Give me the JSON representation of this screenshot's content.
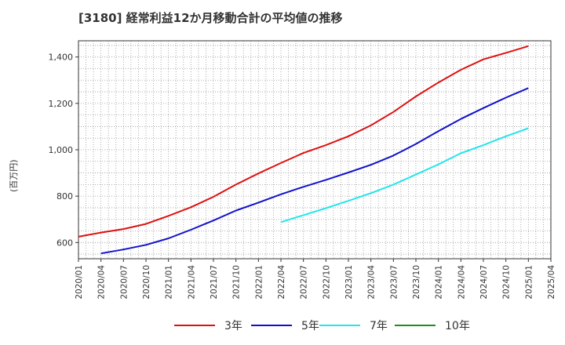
{
  "chart_data": {
    "type": "line",
    "title": "[3180]  経常利益12か月移動合計の平均値の推移",
    "xlabel": "",
    "ylabel": "(百万円)",
    "ylim": [
      530,
      1470
    ],
    "yticks": [
      600,
      800,
      1000,
      1200,
      1400
    ],
    "ytick_labels": [
      "600",
      "800",
      "1,000",
      "1,200",
      "1,400"
    ],
    "xlim": [
      "2020-01",
      "2025-04"
    ],
    "xtick_labels": [
      "2020/01",
      "2020/04",
      "2020/07",
      "2020/10",
      "2021/01",
      "2021/04",
      "2021/07",
      "2021/10",
      "2022/01",
      "2022/04",
      "2022/07",
      "2022/10",
      "2023/01",
      "2023/04",
      "2023/07",
      "2023/10",
      "2024/01",
      "2024/04",
      "2024/07",
      "2024/10",
      "2025/01",
      "2025/04"
    ],
    "grid": true,
    "legend_position": "bottom",
    "series": [
      {
        "name": "3年",
        "color": "#dd1111",
        "x": [
          "2020-01",
          "2020-04",
          "2020-07",
          "2020-10",
          "2021-01",
          "2021-04",
          "2021-07",
          "2021-10",
          "2022-01",
          "2022-04",
          "2022-07",
          "2022-10",
          "2023-01",
          "2023-04",
          "2023-07",
          "2023-10",
          "2024-01",
          "2024-04",
          "2024-07",
          "2024-10",
          "2025-01"
        ],
        "values": [
          625,
          643,
          658,
          680,
          715,
          752,
          797,
          850,
          898,
          943,
          986,
          1020,
          1058,
          1105,
          1163,
          1230,
          1290,
          1345,
          1390,
          1418,
          1447
        ]
      },
      {
        "name": "5年",
        "color": "#1111cc",
        "x": [
          "2020-04",
          "2020-07",
          "2020-10",
          "2021-01",
          "2021-04",
          "2021-07",
          "2021-10",
          "2022-01",
          "2022-04",
          "2022-07",
          "2022-10",
          "2023-01",
          "2023-04",
          "2023-07",
          "2023-10",
          "2024-01",
          "2024-04",
          "2024-07",
          "2024-10",
          "2025-01"
        ],
        "values": [
          553,
          570,
          590,
          618,
          655,
          695,
          738,
          772,
          808,
          840,
          870,
          902,
          935,
          975,
          1025,
          1080,
          1133,
          1180,
          1225,
          1266
        ]
      },
      {
        "name": "7年",
        "color": "#22e5ee",
        "x": [
          "2022-04",
          "2022-07",
          "2022-10",
          "2023-01",
          "2023-04",
          "2023-07",
          "2023-10",
          "2024-01",
          "2024-04",
          "2024-07",
          "2024-10",
          "2025-01"
        ],
        "values": [
          688,
          718,
          748,
          780,
          813,
          850,
          893,
          937,
          985,
          1020,
          1058,
          1093
        ]
      },
      {
        "name": "10年",
        "color": "#228b22",
        "x": [],
        "values": []
      }
    ]
  }
}
